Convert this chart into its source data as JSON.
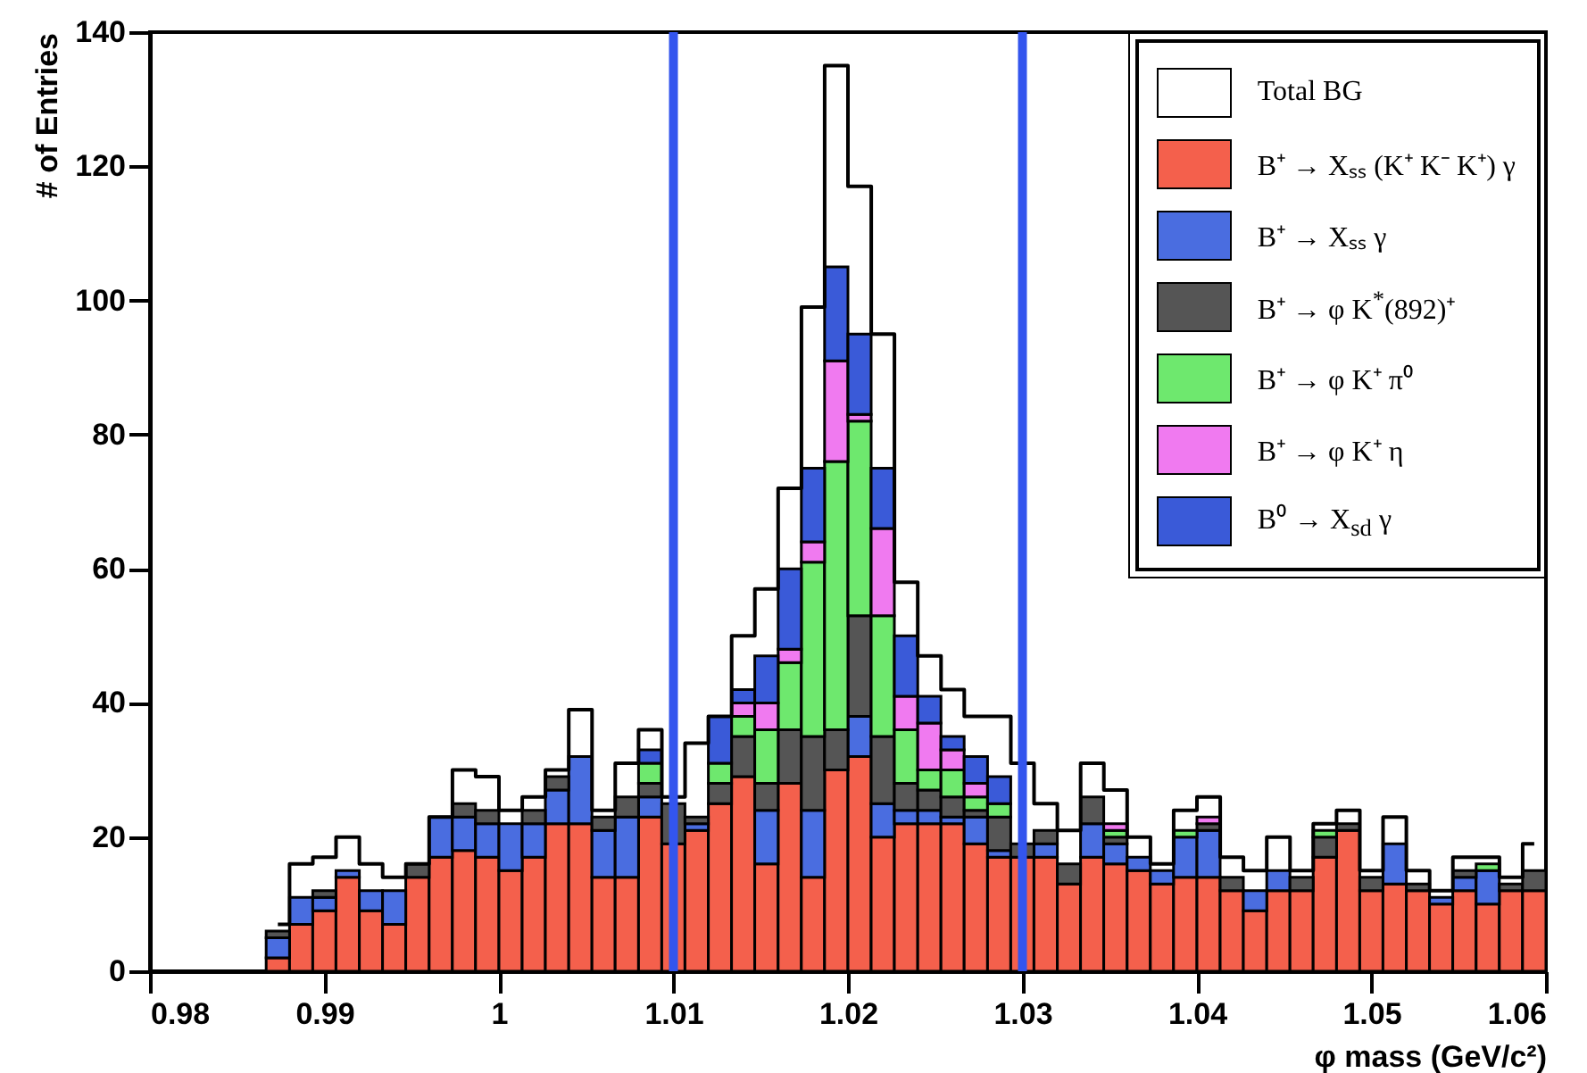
{
  "chart_data": {
    "type": "bar",
    "stacked": true,
    "xlabel": "φ mass (GeV/c²)",
    "ylabel": "# of Entries",
    "x": [
      0.98733,
      0.98867,
      0.99,
      0.99133,
      0.99267,
      0.994,
      0.99533,
      0.99667,
      0.998,
      0.99933,
      1.00067,
      1.002,
      1.00333,
      1.00467,
      1.006,
      1.00733,
      1.00867,
      1.01,
      1.01133,
      1.01267,
      1.014,
      1.01533,
      1.01667,
      1.018,
      1.01933,
      1.02067,
      1.022,
      1.02333,
      1.02467,
      1.026,
      1.02733,
      1.02867,
      1.03,
      1.03133,
      1.03267,
      1.034,
      1.03533,
      1.03667,
      1.038,
      1.03933,
      1.04067,
      1.042,
      1.04333,
      1.04467,
      1.046,
      1.04733,
      1.04867,
      1.05,
      1.05133,
      1.05267,
      1.054,
      1.05533,
      1.05667,
      1.058,
      1.05933
    ],
    "series": [
      {
        "name": "Total BG",
        "type": "step",
        "color": "#000000",
        "values": [
          7,
          16,
          17,
          20,
          16,
          14,
          16,
          23,
          30,
          29,
          24,
          26,
          30,
          39,
          24,
          31,
          36,
          26,
          34,
          38,
          50,
          57,
          72,
          99,
          135,
          117,
          95,
          58,
          47,
          42,
          38,
          38,
          31,
          25,
          21,
          31,
          27,
          20,
          16,
          24,
          26,
          17,
          15,
          20,
          15,
          22,
          24,
          15,
          23,
          15,
          12,
          17,
          17,
          14,
          19
        ]
      },
      {
        "name": "B⁺ → Xₛₛ (K⁺ K⁻ K⁺) γ",
        "color": "#f4604c",
        "values": [
          2,
          7,
          9,
          14,
          9,
          7,
          14,
          17,
          18,
          17,
          15,
          17,
          22,
          22,
          14,
          14,
          23,
          19,
          21,
          25,
          29,
          16,
          28,
          14,
          30,
          32,
          20,
          22,
          22,
          22,
          19,
          17,
          17,
          17,
          13,
          17,
          16,
          15,
          13,
          14,
          14,
          12,
          9,
          12,
          12,
          17,
          21,
          12,
          13,
          12,
          10,
          12,
          10,
          12,
          12
        ]
      },
      {
        "name": "B⁺ → Xₛₛ γ",
        "color": "#4a6de0",
        "values": [
          3,
          4,
          2,
          1,
          3,
          5,
          0,
          6,
          5,
          5,
          7,
          5,
          5,
          10,
          7,
          9,
          3,
          0,
          1,
          0,
          0,
          8,
          0,
          10,
          0,
          6,
          5,
          2,
          2,
          1,
          4,
          1,
          null,
          2,
          0,
          5,
          3,
          2,
          2,
          6,
          7,
          0,
          3,
          3,
          0,
          0,
          0,
          0,
          6,
          0,
          1,
          2,
          5,
          0,
          0
        ]
      },
      {
        "name": "B⁺ → φ K$^{*}$(892)⁺",
        "color": "#555555",
        "values": [
          1,
          0,
          1,
          0,
          0,
          0,
          2,
          0,
          2,
          2,
          0,
          2,
          2,
          0,
          2,
          3,
          2,
          6,
          1,
          3,
          6,
          4,
          8,
          11,
          6,
          15,
          10,
          4,
          3,
          3,
          1,
          5,
          2,
          2,
          3,
          4,
          1,
          0,
          0,
          0,
          1,
          2,
          0,
          0,
          2,
          3,
          1,
          2,
          0,
          1,
          0,
          1,
          0,
          1,
          3
        ]
      },
      {
        "name": "B⁺ → φ K⁺ π⁰",
        "color": "#6ee86e",
        "values": [
          0,
          0,
          0,
          0,
          0,
          0,
          0,
          0,
          0,
          0,
          0,
          0,
          0,
          0,
          0,
          0,
          3,
          0,
          0,
          3,
          3,
          8,
          10,
          26,
          40,
          29,
          18,
          8,
          3,
          4,
          2,
          2,
          0,
          0,
          0,
          0,
          1,
          0,
          0,
          1,
          0,
          0,
          0,
          0,
          0,
          1,
          0,
          0,
          0,
          0,
          0,
          0,
          1,
          0,
          0
        ]
      },
      {
        "name": "B⁺ → φ K⁺ η",
        "color": "#f07af0",
        "values": [
          0,
          0,
          0,
          0,
          0,
          0,
          0,
          0,
          0,
          0,
          0,
          0,
          0,
          0,
          0,
          0,
          0,
          0,
          0,
          0,
          2,
          4,
          2,
          3,
          15,
          1,
          13,
          5,
          7,
          3,
          2,
          0,
          0,
          0,
          0,
          0,
          1,
          0,
          0,
          0,
          1,
          0,
          0,
          0,
          0,
          0,
          0,
          0,
          0,
          0,
          0,
          0,
          0,
          0,
          0
        ]
      },
      {
        "name": "B⁰ → X$_{sd}$ γ",
        "color": "#3a5ad8",
        "values": [
          0,
          0,
          0,
          0,
          0,
          0,
          0,
          0,
          0,
          0,
          0,
          0,
          0,
          0,
          0,
          0,
          2,
          0,
          0,
          7,
          2,
          7,
          12,
          11,
          14,
          12,
          9,
          9,
          4,
          2,
          4,
          4,
          0,
          0,
          0,
          0,
          0,
          0,
          0,
          0,
          0,
          0,
          0,
          0,
          0,
          0,
          0,
          0,
          0,
          0,
          0,
          0,
          0,
          0,
          0
        ]
      }
    ],
    "xlim": [
      0.98,
      1.06
    ],
    "xticks": [
      0.98,
      0.99,
      1,
      1.01,
      1.02,
      1.03,
      1.04,
      1.05,
      1.06
    ],
    "ylim": [
      0,
      140
    ],
    "yticks": [
      0,
      20,
      40,
      60,
      80,
      100,
      120,
      140
    ],
    "ref_lines": [
      {
        "axis": "x",
        "value": 1.01,
        "color": "#3355ee"
      },
      {
        "axis": "x",
        "value": 1.03,
        "color": "#3355ee"
      }
    ],
    "legend": "top right"
  }
}
